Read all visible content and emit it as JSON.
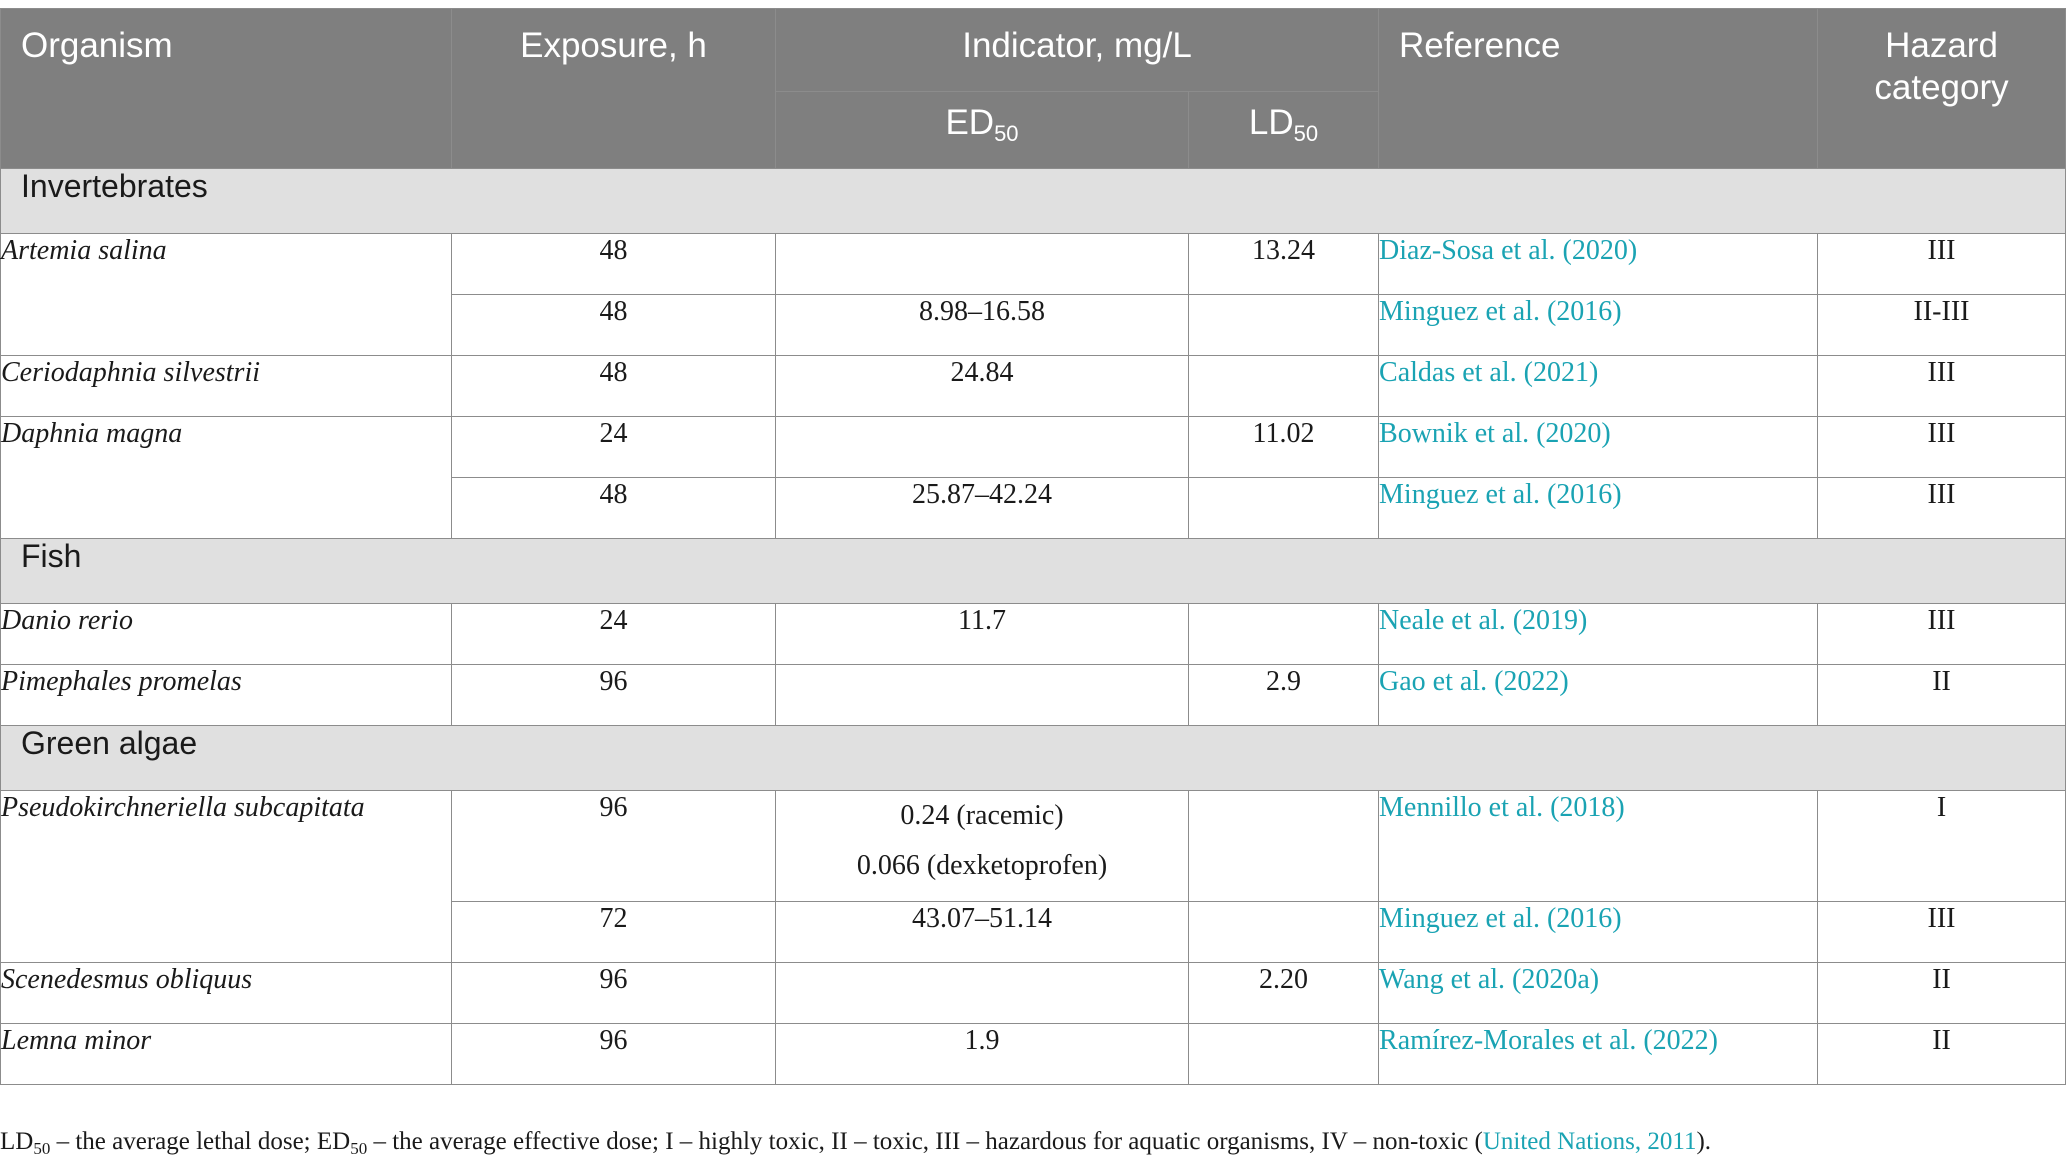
{
  "header": {
    "organism": "Organism",
    "exposure": "Exposure, h",
    "indicator": "Indicator, mg/L",
    "ed_prefix": "ED",
    "ed_sub": "50",
    "ld_prefix": "LD",
    "ld_sub": "50",
    "reference": "Reference",
    "hazard": "Hazard category"
  },
  "groups": [
    {
      "name": "Invertebrates",
      "rows": [
        {
          "organism": "Artemia salina",
          "exposure": "48",
          "ed50": "",
          "ld50": "13.24",
          "reference": "Diaz-Sosa et al. (2020)",
          "hazard": "III"
        },
        {
          "organism": "",
          "exposure": "48",
          "ed50": "8.98–16.58",
          "ld50": "",
          "reference": "Minguez et al. (2016)",
          "hazard": "II-III"
        },
        {
          "organism": "Ceriodaphnia silvestrii",
          "exposure": "48",
          "ed50": "24.84",
          "ld50": "",
          "reference": "Caldas et al. (2021)",
          "hazard": "III"
        },
        {
          "organism": "Daphnia magna",
          "exposure": "24",
          "ed50": "",
          "ld50": "11.02",
          "reference": "Bownik et al. (2020)",
          "hazard": "III"
        },
        {
          "organism": "",
          "exposure": "48",
          "ed50": "25.87–42.24",
          "ld50": "",
          "reference": "Minguez et al. (2016)",
          "hazard": "III"
        }
      ]
    },
    {
      "name": "Fish",
      "rows": [
        {
          "organism": "Danio rerio",
          "exposure": "24",
          "ed50": "11.7",
          "ld50": "",
          "reference": "Neale et al. (2019)",
          "hazard": "III"
        },
        {
          "organism": "Pimephales promelas",
          "exposure": "96",
          "ed50": "",
          "ld50": "2.9",
          "reference": "Gao et al. (2022)",
          "hazard": "II"
        }
      ]
    },
    {
      "name": "Green algae",
      "rows": [
        {
          "organism": "Pseudokirchneriella subcapitata",
          "exposure": "96",
          "ed50_line1": "0.24 (racemic)",
          "ed50_line2": "0.066 (dexketoprofen)",
          "ld50": "",
          "reference": "Mennillo et al. (2018)",
          "hazard": "I"
        },
        {
          "organism": "",
          "exposure": "72",
          "ed50": "43.07–51.14",
          "ld50": "",
          "reference": "Minguez et al. (2016)",
          "hazard": "III"
        },
        {
          "organism": "Scenedesmus obliquus",
          "exposure": "96",
          "ed50": "",
          "ld50": "2.20",
          "reference": "Wang et al. (2020a)",
          "hazard": "II"
        },
        {
          "organism": "Lemna minor",
          "exposure": "96",
          "ed50": "1.9",
          "ld50": "",
          "reference": "Ramírez-Morales et al. (2022)",
          "hazard": "II"
        }
      ]
    }
  ],
  "footnote": {
    "ld_prefix": "LD",
    "ld_sub": "50",
    "text1": " – the average lethal dose; ",
    "ed_prefix": "ED",
    "ed_sub": "50",
    "text2": " – the average effective dose; I – highly toxic, II – toxic, III – hazardous for aquatic organisms, IV – non-toxic (",
    "citation": "United Nations, 2011",
    "text3": ")."
  }
}
